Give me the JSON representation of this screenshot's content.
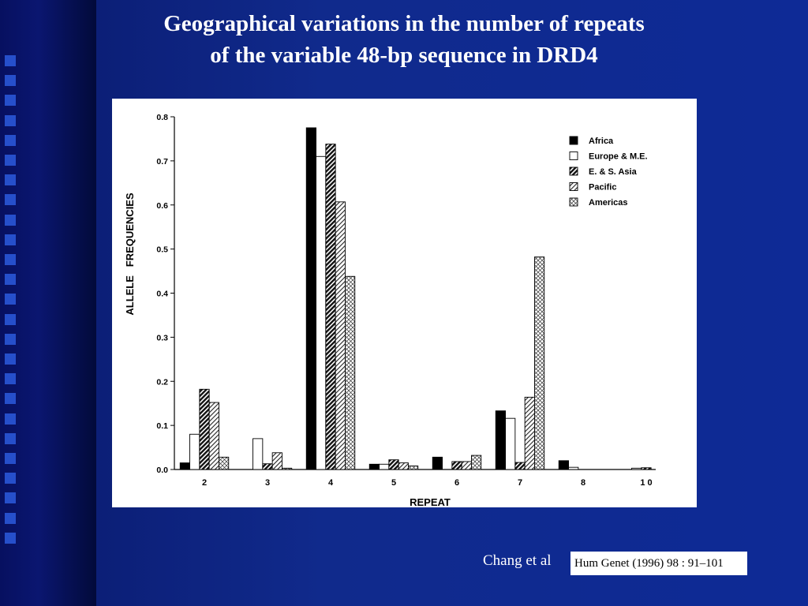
{
  "title_line1": "Geographical variations in the number of repeats",
  "title_line2": "of the variable 48-bp sequence in DRD4",
  "citation_author": "Chang et al",
  "citation_journal": "Hum Genet (1996) 98 : 91–101",
  "chart_data": {
    "type": "bar",
    "xlabel": "REPEAT",
    "ylabel": "ALLELE   FREQUENCIES",
    "ylim": [
      0,
      0.8
    ],
    "yticks": [
      "0.0",
      "0.1",
      "0.2",
      "0.3",
      "0.4",
      "0.5",
      "0.6",
      "0.7",
      "0.8"
    ],
    "categories": [
      "2",
      "3",
      "4",
      "5",
      "6",
      "7",
      "8",
      "1 0"
    ],
    "legend_position": "top-right",
    "series": [
      {
        "name": "Africa",
        "fill": "solid",
        "values": [
          0.015,
          0.0,
          0.775,
          0.012,
          0.028,
          0.133,
          0.02,
          0.0
        ]
      },
      {
        "name": "Europe & M.E.",
        "fill": "white",
        "values": [
          0.08,
          0.07,
          0.71,
          0.012,
          0.0,
          0.116,
          0.005,
          0.003
        ]
      },
      {
        "name": "E. & S. Asia",
        "fill": "dense-hatch",
        "values": [
          0.182,
          0.013,
          0.738,
          0.022,
          0.018,
          0.016,
          0.0,
          0.004
        ]
      },
      {
        "name": "Pacific",
        "fill": "light-hatch",
        "values": [
          0.152,
          0.038,
          0.607,
          0.015,
          0.018,
          0.164,
          0.0,
          0.0
        ]
      },
      {
        "name": "Americas",
        "fill": "cross-hatch",
        "values": [
          0.028,
          0.003,
          0.438,
          0.008,
          0.032,
          0.482,
          0.0,
          0.0
        ]
      }
    ]
  }
}
